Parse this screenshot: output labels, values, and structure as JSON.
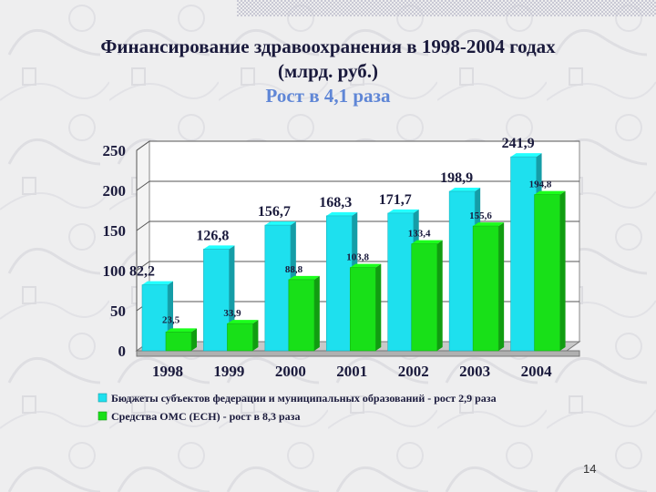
{
  "title": {
    "line1": "Финансирование здравоохранения в 1998-2004 годах",
    "line2": "(млрд. руб.)",
    "line3": "Рост в 4,1 раза"
  },
  "page_number": "14",
  "colors": {
    "series1": "#1ee0ee",
    "series2": "#18e018",
    "title": "#1a1a3c",
    "accent": "#5f86d6"
  },
  "chart_data": {
    "type": "bar",
    "categories": [
      "1998",
      "1999",
      "2000",
      "2001",
      "2002",
      "2003",
      "2004"
    ],
    "ylim": [
      0,
      250
    ],
    "yticks": [
      "0",
      "50",
      "100",
      "150",
      "200",
      "250"
    ],
    "series": [
      {
        "name": "Бюджеты субъектов федерации и муниципальных образований - рост 2,9 раза",
        "values": [
          82.2,
          126.8,
          156.7,
          168.3,
          171.7,
          198.9,
          241.9
        ],
        "labels": [
          "82,2",
          "126,8",
          "156,7",
          "168,3",
          "171,7",
          "198,9",
          "241,9"
        ]
      },
      {
        "name": "Средства ОМС (ЕСН) - рост в 8,3 раза",
        "values": [
          23.5,
          33.9,
          88.8,
          103.8,
          133.4,
          155.6,
          194.8
        ],
        "labels": [
          "23,5",
          "33,9",
          "88,8",
          "103,8",
          "133,4",
          "155,6",
          "194,8"
        ]
      }
    ],
    "legend_position": "bottom"
  }
}
